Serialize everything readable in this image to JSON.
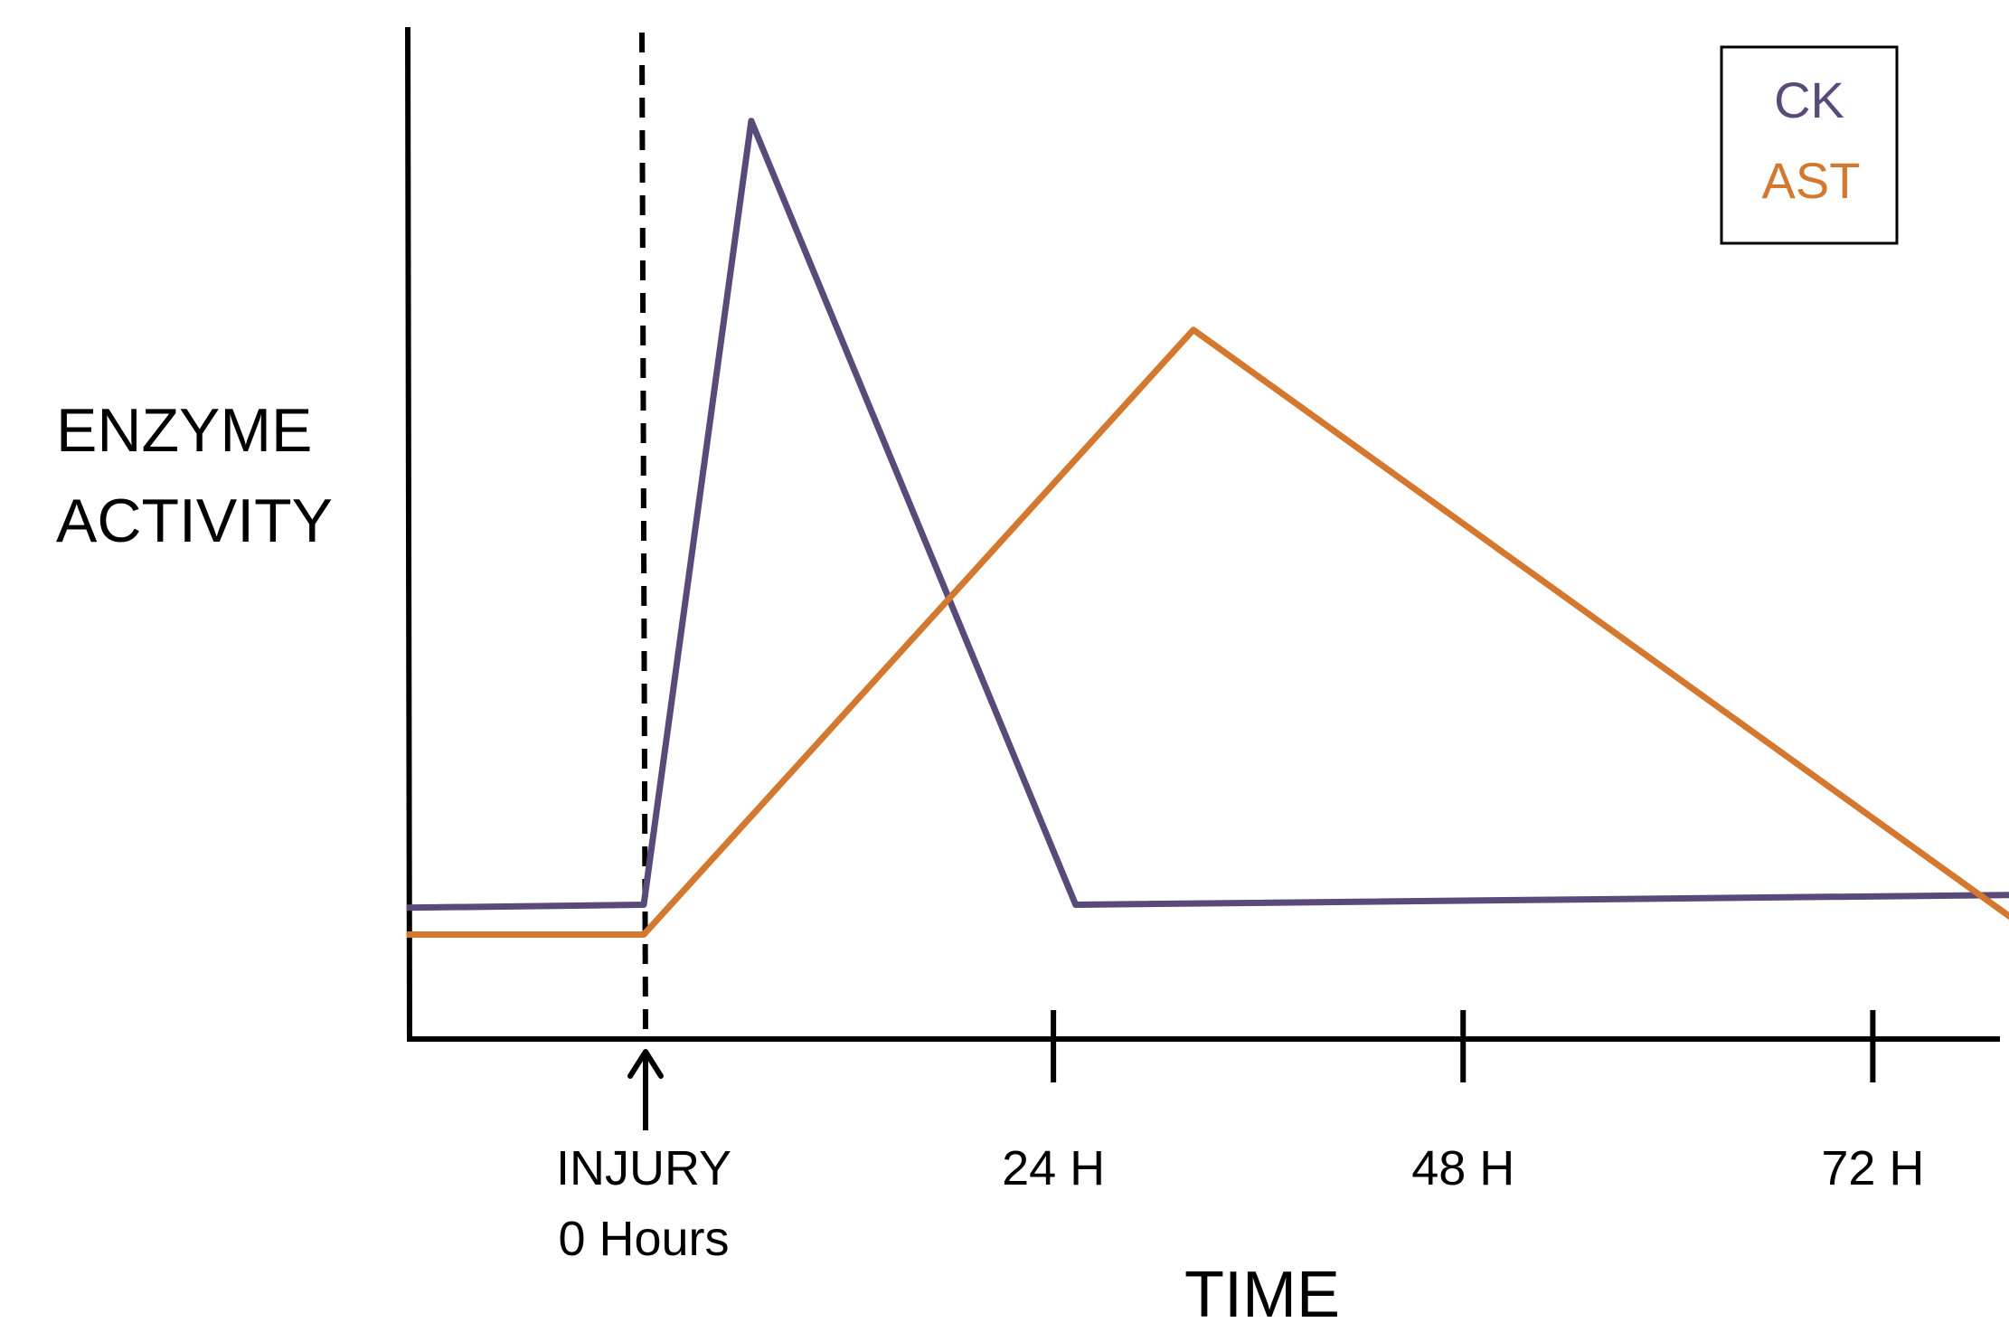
{
  "chart_data": {
    "type": "line",
    "title": "",
    "xlabel": "TIME",
    "ylabel_lines": [
      "ENZYME",
      "ACTIVITY"
    ],
    "x_unit": "hours",
    "x_ticks": [
      {
        "value": 0,
        "lines": [
          "INJURY",
          "0 Hours"
        ]
      },
      {
        "value": 24,
        "lines": [
          "24 H"
        ]
      },
      {
        "value": 48,
        "lines": [
          "48 H"
        ]
      },
      {
        "value": 72,
        "lines": [
          "72 H"
        ]
      }
    ],
    "xlim": [
      -14,
      81
    ],
    "ylim": [
      0,
      100
    ],
    "injury_marker": {
      "x": 0,
      "style": "dashed",
      "arrow": true
    },
    "legend": {
      "position": "top-right",
      "entries": [
        "CK",
        "AST"
      ]
    },
    "series": [
      {
        "name": "CK",
        "color": "#5a4a7a",
        "points": [
          [
            -13.9,
            13.2
          ],
          [
            0,
            13.5
          ],
          [
            6.3,
            92.3
          ],
          [
            25.3,
            13.5
          ],
          [
            81,
            14.5
          ]
        ]
      },
      {
        "name": "AST",
        "color": "#d4782f",
        "points": [
          [
            -13.9,
            10.5
          ],
          [
            0,
            10.5
          ],
          [
            32.2,
            71.3
          ],
          [
            80.6,
            11.6
          ]
        ]
      }
    ]
  }
}
